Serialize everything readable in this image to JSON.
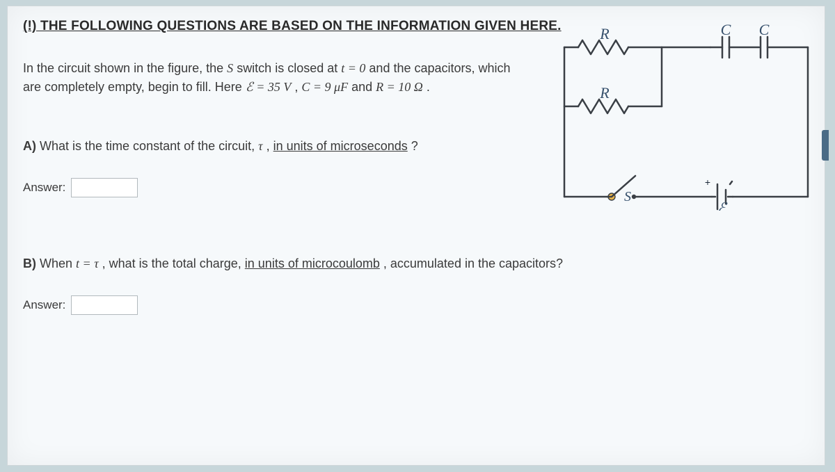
{
  "header": "(!) THE FOLLOWING QUESTIONS ARE BASED ON THE INFORMATION GIVEN HERE.",
  "intro": {
    "pre": "In the circuit shown in the figure, the ",
    "S": "S",
    "mid1": " switch is closed at ",
    "t0": "t = 0",
    "mid2": " and the capacitors, which are completely empty, begin to fill. Here ",
    "E": "ℰ = 35 V",
    "mid3": ", ",
    "Cv": "C = 9 μF",
    "mid4": " and ",
    "Rv": "R = 10 Ω",
    "end": "."
  },
  "qa": {
    "label": "A)",
    "text_pre": " What is the time constant of the circuit, ",
    "tau": "τ",
    "text_mid": ", ",
    "under": "in units of microseconds",
    "text_end": "?"
  },
  "qb": {
    "label": "B)",
    "text_pre": " When ",
    "eq": "t = τ",
    "text_mid": ", what is the total charge, ",
    "under": "in units of microcoulomb",
    "text_end": ", accumulated in the capacitors?"
  },
  "answer_label": "Answer:",
  "figure": {
    "labels": {
      "R1": "R",
      "R2": "R",
      "C1": "C",
      "C2": "C",
      "S": "S",
      "E": "ℰ",
      "plus": "+"
    },
    "colors": {
      "wire": "#3a3f45",
      "label": "#1e2a3a",
      "label_italic": "#36506c",
      "switch_pivot": "#e6b24a",
      "switch_arm": "#3a3f45",
      "bg": "#f6f9fb"
    },
    "stroke_width": 2.5,
    "font_size_label": 22
  }
}
